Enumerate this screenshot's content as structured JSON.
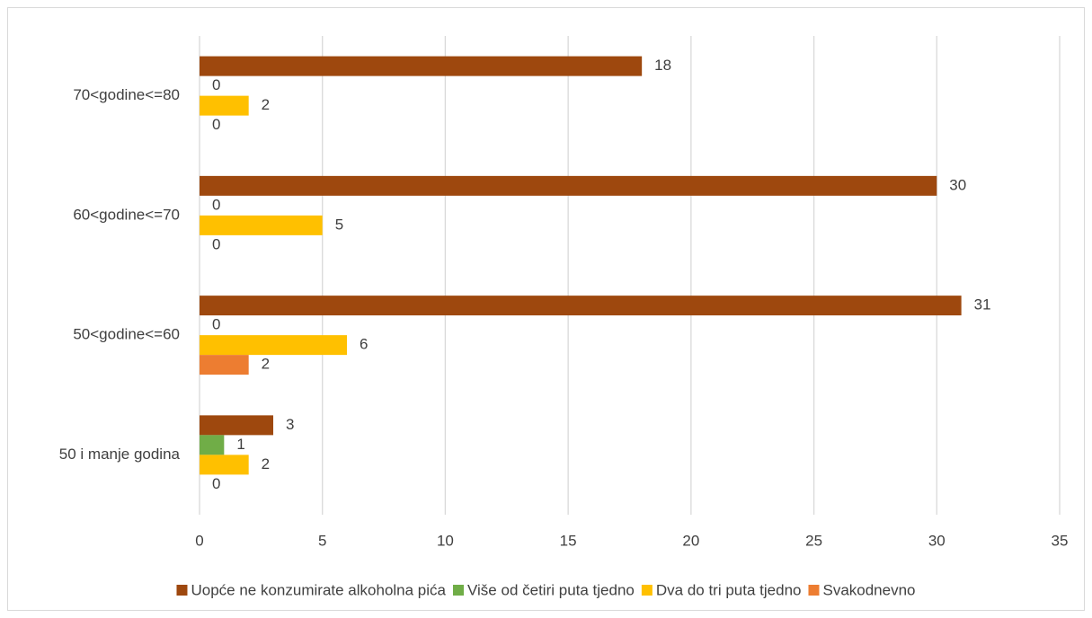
{
  "chart_data": {
    "type": "bar",
    "orientation": "horizontal",
    "categories": [
      "50 i manje godina",
      "50<godine<=60",
      "60<godine<=70",
      "70<godine<=80"
    ],
    "series": [
      {
        "name": "Uopće ne konzumirate alkoholna pića",
        "color": "#9e480e",
        "values": [
          3,
          31,
          30,
          18
        ]
      },
      {
        "name": "Više od četiri puta tjedno",
        "color": "#70ad47",
        "values": [
          1,
          0,
          0,
          0
        ]
      },
      {
        "name": "Dva do tri puta tjedno",
        "color": "#ffc000",
        "values": [
          2,
          6,
          5,
          2
        ]
      },
      {
        "name": "Svakodnevno",
        "color": "#ed7d31",
        "values": [
          0,
          2,
          0,
          0
        ]
      }
    ],
    "xlim": [
      0,
      35
    ],
    "xticks": [
      0,
      5,
      10,
      15,
      20,
      25,
      30,
      35
    ],
    "grid": true,
    "legend": "bottom"
  }
}
